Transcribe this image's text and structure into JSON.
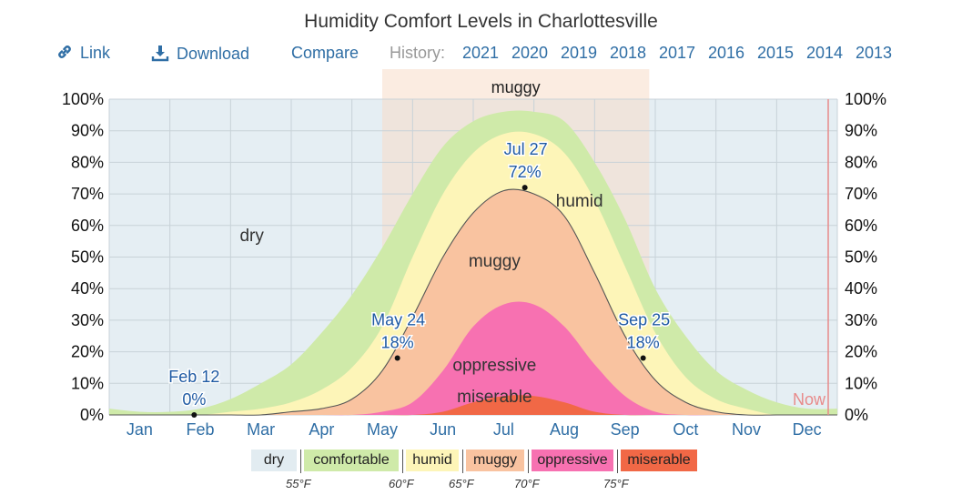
{
  "title": "Humidity Comfort Levels in Charlottesville",
  "toolbar": {
    "link_label": "Link",
    "download_label": "Download",
    "compare_label": "Compare",
    "history_label": "History:",
    "years": [
      "2021",
      "2020",
      "2019",
      "2018",
      "2017",
      "2016",
      "2015",
      "2014",
      "2013"
    ]
  },
  "legend": {
    "items": [
      {
        "label": "dry",
        "color": "#e2ecf1"
      },
      {
        "label": "comfortable",
        "color": "#cfeaa9"
      },
      {
        "label": "humid",
        "color": "#fdf5b8"
      },
      {
        "label": "muggy",
        "color": "#f9c3a0"
      },
      {
        "label": "oppressive",
        "color": "#f771b1"
      },
      {
        "label": "miserable",
        "color": "#f16846"
      }
    ],
    "temps": [
      "55°F",
      "60°F",
      "65°F",
      "70°F",
      "75°F"
    ]
  },
  "chart_data": {
    "type": "area",
    "x_unit": "month",
    "x": [
      0.0,
      0.5,
      1.0,
      1.5,
      2.0,
      2.5,
      3.0,
      3.5,
      4.0,
      4.5,
      5.0,
      5.5,
      6.0,
      6.5,
      7.0,
      7.5,
      8.0,
      8.5,
      9.0,
      9.5,
      10.0,
      10.5,
      11.0,
      11.5,
      12.0
    ],
    "xticks": [
      "Jan",
      "Feb",
      "Mar",
      "Apr",
      "May",
      "Jun",
      "Jul",
      "Aug",
      "Sep",
      "Oct",
      "Nov",
      "Dec"
    ],
    "ylim": [
      0,
      100
    ],
    "yticks": [
      "0%",
      "10%",
      "20%",
      "30%",
      "40%",
      "50%",
      "60%",
      "70%",
      "80%",
      "90%",
      "100%"
    ],
    "series": [
      {
        "name": "comfortable",
        "color": "#cfeaa9",
        "values": [
          2,
          1,
          1,
          2,
          5,
          10,
          16,
          26,
          38,
          53,
          70,
          85,
          93,
          96,
          96,
          93,
          80,
          62,
          40,
          25,
          14,
          8,
          4,
          2,
          2
        ]
      },
      {
        "name": "humid",
        "color": "#fdf5b8",
        "values": [
          0,
          0,
          0,
          0,
          1,
          2,
          4,
          8,
          15,
          28,
          50,
          70,
          83,
          89,
          89,
          83,
          68,
          47,
          26,
          12,
          5,
          2,
          0,
          0,
          0
        ]
      },
      {
        "name": "muggy",
        "color": "#f9c3a0",
        "values": [
          0,
          0,
          0,
          0,
          0,
          0,
          1,
          2,
          5,
          14,
          31,
          50,
          64,
          71,
          70,
          63,
          45,
          25,
          11,
          4,
          1,
          0,
          0,
          0,
          0
        ]
      },
      {
        "name": "oppressive",
        "color": "#f771b1",
        "values": [
          0,
          0,
          0,
          0,
          0,
          0,
          0,
          0,
          0,
          1,
          4,
          14,
          28,
          35,
          35,
          28,
          16,
          6,
          1,
          0,
          0,
          0,
          0,
          0,
          0
        ]
      },
      {
        "name": "miserable",
        "color": "#f16846",
        "values": [
          0,
          0,
          0,
          0,
          0,
          0,
          0,
          0,
          0,
          0,
          0,
          1,
          4,
          6,
          6,
          4,
          1,
          0,
          0,
          0,
          0,
          0,
          0,
          0,
          0
        ]
      }
    ],
    "muggy_season": {
      "label": "muggy",
      "start": 4.5,
      "end": 8.9
    },
    "annotations": [
      {
        "date": "Feb 12",
        "value": "0%",
        "x": 1.4,
        "y": 0
      },
      {
        "date": "May 24",
        "value": "18%",
        "x": 4.75,
        "y": 18
      },
      {
        "date": "Jul 27",
        "value": "72%",
        "x": 6.85,
        "y": 72
      },
      {
        "date": "Sep 25",
        "value": "18%",
        "x": 8.8,
        "y": 18
      }
    ],
    "region_labels": [
      {
        "label": "dry",
        "x": 2.35,
        "y": 55
      },
      {
        "label": "humid",
        "x": 7.75,
        "y": 66
      },
      {
        "label": "muggy",
        "x": 6.35,
        "y": 47
      },
      {
        "label": "oppressive",
        "x": 6.35,
        "y": 14
      },
      {
        "label": "miserable",
        "x": 6.35,
        "y": 4
      }
    ],
    "now": {
      "label": "Now",
      "x": 11.85
    },
    "background_color": "#e5eef3",
    "grid": true
  }
}
